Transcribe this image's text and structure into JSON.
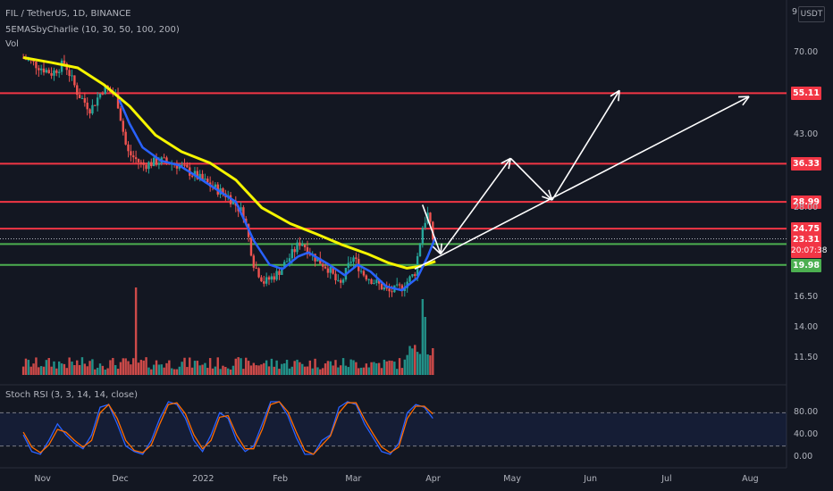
{
  "header": {
    "symbol": "FIL / TetherUS, 1D, BINANCE",
    "indicator": "5EMASbyCharlie (10, 30, 50, 100, 200)",
    "vol": "Vol"
  },
  "currency_button": "USDT",
  "currency_prefix": "9",
  "stoch_label": "Stoch RSI (3, 3, 14, 14, close)",
  "price_tags": {
    "current": "23.31",
    "countdown": "20:07:38",
    "green1": "22.59",
    "green2": "19.98"
  },
  "colors": {
    "background": "#131722",
    "resistance": "#f23645",
    "support": "#4caf50",
    "ema_fast": "#2962ff",
    "ema_slow": "#f5f500",
    "arrows": "#ffffff",
    "stoch_k": "#2962ff",
    "stoch_d": "#ff6d00"
  },
  "chart_data": [
    {
      "type": "candlestick",
      "title": "FIL / TetherUS, 1D, BINANCE",
      "scale": "log",
      "ylim": [
        9,
        75
      ],
      "x_ticks": [
        "Nov",
        "Dec",
        "2022",
        "Feb",
        "Mar",
        "Apr",
        "May",
        "Jun",
        "Jul",
        "Aug"
      ],
      "y_ticks": [
        "70.00",
        "43.00",
        "28.00",
        "16.50",
        "14.00",
        "11.50"
      ],
      "horizontal_levels": [
        {
          "value": 55.11,
          "label": "55.11",
          "color": "red"
        },
        {
          "value": 36.33,
          "label": "36.33",
          "color": "red"
        },
        {
          "value": 28.99,
          "label": "28.99",
          "color": "red"
        },
        {
          "value": 24.75,
          "label": "24.75",
          "color": "red"
        },
        {
          "value": 22.59,
          "label": "22.59",
          "color": "green"
        },
        {
          "value": 19.98,
          "label": "19.98",
          "color": "green"
        }
      ],
      "price_path": [
        [
          "2021-10-25",
          68
        ],
        [
          "2021-11-01",
          64
        ],
        [
          "2021-11-05",
          62
        ],
        [
          "2021-11-10",
          66
        ],
        [
          "2021-11-15",
          55
        ],
        [
          "2021-11-20",
          50
        ],
        [
          "2021-11-25",
          57
        ],
        [
          "2021-11-30",
          54
        ],
        [
          "2021-12-04",
          39
        ],
        [
          "2021-12-10",
          36
        ],
        [
          "2021-12-17",
          37
        ],
        [
          "2021-12-24",
          36
        ],
        [
          "2021-12-30",
          34
        ],
        [
          "2022-01-05",
          32
        ],
        [
          "2022-01-12",
          30
        ],
        [
          "2022-01-18",
          27
        ],
        [
          "2022-01-22",
          20
        ],
        [
          "2022-01-26",
          18
        ],
        [
          "2022-01-31",
          19
        ],
        [
          "2022-02-05",
          21
        ],
        [
          "2022-02-09",
          23
        ],
        [
          "2022-02-14",
          21
        ],
        [
          "2022-02-20",
          19.5
        ],
        [
          "2022-02-24",
          17.5
        ],
        [
          "2022-03-01",
          21
        ],
        [
          "2022-03-05",
          19
        ],
        [
          "2022-03-10",
          18
        ],
        [
          "2022-03-15",
          17
        ],
        [
          "2022-03-20",
          17.5
        ],
        [
          "2022-03-25",
          19
        ],
        [
          "2022-03-28",
          25
        ],
        [
          "2022-03-30",
          27
        ],
        [
          "2022-04-01",
          23.31
        ]
      ],
      "ema_fast": [
        [
          "2021-12-01",
          53
        ],
        [
          "2021-12-05",
          46
        ],
        [
          "2021-12-10",
          40
        ],
        [
          "2021-12-17",
          37
        ],
        [
          "2021-12-24",
          36
        ],
        [
          "2021-12-30",
          34
        ],
        [
          "2022-01-05",
          32
        ],
        [
          "2022-01-15",
          29
        ],
        [
          "2022-01-22",
          23
        ],
        [
          "2022-01-28",
          20
        ],
        [
          "2022-02-02",
          19.5
        ],
        [
          "2022-02-08",
          21
        ],
        [
          "2022-02-12",
          21.5
        ],
        [
          "2022-02-20",
          20
        ],
        [
          "2022-02-26",
          18.8
        ],
        [
          "2022-03-03",
          20
        ],
        [
          "2022-03-08",
          19.2
        ],
        [
          "2022-03-14",
          17.6
        ],
        [
          "2022-03-20",
          17.2
        ],
        [
          "2022-03-26",
          18.5
        ],
        [
          "2022-03-30",
          21
        ],
        [
          "2022-04-02",
          23.5
        ]
      ],
      "ema_slow": [
        [
          "2021-10-25",
          68
        ],
        [
          "2021-11-05",
          66
        ],
        [
          "2021-11-15",
          64
        ],
        [
          "2021-11-25",
          58
        ],
        [
          "2021-12-05",
          51
        ],
        [
          "2021-12-15",
          43
        ],
        [
          "2021-12-25",
          39
        ],
        [
          "2022-01-05",
          36.5
        ],
        [
          "2022-01-15",
          33
        ],
        [
          "2022-01-25",
          28
        ],
        [
          "2022-02-05",
          25.5
        ],
        [
          "2022-02-15",
          24
        ],
        [
          "2022-02-25",
          22.5
        ],
        [
          "2022-03-07",
          21.3
        ],
        [
          "2022-03-15",
          20.2
        ],
        [
          "2022-03-22",
          19.6
        ],
        [
          "2022-03-27",
          19.8
        ],
        [
          "2022-04-02",
          20.4
        ]
      ],
      "projection_arrows": [
        {
          "from": [
            "2022-03-28",
            28.5
          ],
          "to": [
            "2022-04-04",
            21.3
          ]
        },
        {
          "from": [
            "2022-04-04",
            21.3
          ],
          "to": [
            "2022-05-01",
            37.5
          ]
        },
        {
          "from": [
            "2022-05-01",
            37.5
          ],
          "to": [
            "2022-05-17",
            29.3
          ]
        },
        {
          "from": [
            "2022-05-17",
            29.3
          ],
          "to": [
            "2022-06-12",
            56
          ]
        },
        {
          "from": [
            "2022-03-25",
            19.5
          ],
          "to": [
            "2022-08-01",
            54
          ]
        }
      ]
    },
    {
      "type": "bar",
      "title": "Vol",
      "note": "volume histogram, bars colored green for up days and red for down days",
      "spikes": [
        [
          "2021-12-10",
          "very high"
        ],
        [
          "2022-03-29",
          "very high"
        ],
        [
          "2022-03-30",
          "high"
        ]
      ]
    },
    {
      "type": "line",
      "title": "Stoch RSI (3, 3, 14, 14, close)",
      "ylim": [
        0,
        100
      ],
      "y_ticks": [
        "80.00",
        "40.00",
        "0.00"
      ],
      "bands": [
        80,
        20
      ],
      "series": [
        {
          "name": "K",
          "values": [
            40,
            10,
            5,
            30,
            60,
            40,
            25,
            15,
            40,
            90,
            95,
            60,
            20,
            10,
            5,
            30,
            70,
            100,
            95,
            70,
            30,
            10,
            40,
            80,
            70,
            30,
            10,
            20,
            60,
            100,
            100,
            75,
            35,
            5,
            5,
            30,
            40,
            90,
            100,
            95,
            60,
            35,
            10,
            5,
            25,
            80,
            95,
            90,
            70
          ]
        },
        {
          "name": "D",
          "values": [
            45,
            18,
            8,
            22,
            50,
            45,
            30,
            18,
            30,
            80,
            95,
            70,
            30,
            12,
            8,
            22,
            60,
            95,
            98,
            78,
            40,
            15,
            30,
            72,
            75,
            40,
            15,
            15,
            50,
            95,
            100,
            82,
            45,
            12,
            5,
            22,
            38,
            80,
            98,
            98,
            68,
            42,
            18,
            8,
            18,
            70,
            92,
            92,
            78
          ]
        }
      ]
    }
  ]
}
